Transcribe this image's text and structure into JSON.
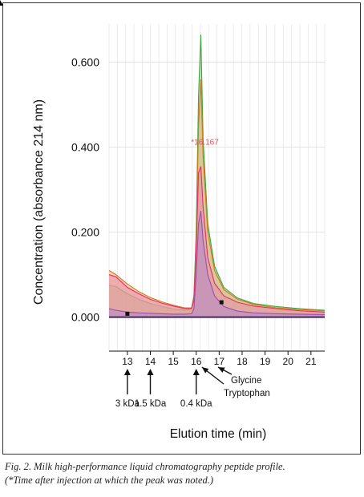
{
  "chart_data": {
    "type": "line",
    "title": "",
    "xlabel": "Elution time (min)",
    "ylabel": "Concentration (absorbance 214 nm)",
    "xlim": [
      12.2,
      21.6
    ],
    "ylim": [
      -0.08,
      0.69
    ],
    "y_ticks": [
      {
        "value": 0.0,
        "label": "0.000"
      },
      {
        "value": 0.2,
        "label": "0.200"
      },
      {
        "value": 0.4,
        "label": "0.400"
      },
      {
        "value": 0.6,
        "label": "0.600"
      }
    ],
    "x_ticks": [
      {
        "value": 13,
        "label": "13"
      },
      {
        "value": 14,
        "label": "14"
      },
      {
        "value": 15,
        "label": "15"
      },
      {
        "value": 16,
        "label": "16"
      },
      {
        "value": 17,
        "label": "17"
      },
      {
        "value": 18,
        "label": "18"
      },
      {
        "value": 19,
        "label": "19"
      },
      {
        "value": 20,
        "label": "20"
      },
      {
        "value": 21,
        "label": "21"
      }
    ],
    "grid": true,
    "peak_annotation": {
      "x": 16.167,
      "y": 0.355,
      "label": "*16.167",
      "color": "#e0506a"
    },
    "series": [
      {
        "color": "#3aa83a",
        "fill": "#8fcf8f",
        "x": [
          12.2,
          12.5,
          13,
          13.5,
          14,
          14.5,
          15,
          15.5,
          15.8,
          15.9,
          16.0,
          16.1,
          16.2,
          16.3,
          16.5,
          16.8,
          17.2,
          17.8,
          18.5,
          19.5,
          20.5,
          21.6
        ],
        "y": [
          0.075,
          0.072,
          0.055,
          0.042,
          0.032,
          0.025,
          0.019,
          0.016,
          0.02,
          0.05,
          0.2,
          0.52,
          0.665,
          0.42,
          0.22,
          0.12,
          0.07,
          0.045,
          0.032,
          0.025,
          0.02,
          0.016
        ]
      },
      {
        "color": "#d47a1a",
        "fill": "#e9b27a",
        "x": [
          12.2,
          12.5,
          13,
          13.5,
          14,
          14.5,
          15,
          15.5,
          15.8,
          15.9,
          16.0,
          16.1,
          16.2,
          16.3,
          16.5,
          16.8,
          17.2,
          17.8,
          18.5,
          19.5,
          20.5,
          21.6
        ],
        "y": [
          0.11,
          0.1,
          0.078,
          0.06,
          0.046,
          0.036,
          0.028,
          0.022,
          0.022,
          0.05,
          0.18,
          0.45,
          0.56,
          0.38,
          0.2,
          0.11,
          0.065,
          0.042,
          0.03,
          0.022,
          0.018,
          0.015
        ]
      },
      {
        "color": "#e2306a",
        "fill": "#e98aa8",
        "x": [
          12.2,
          12.5,
          13,
          13.5,
          14,
          14.5,
          15,
          15.5,
          15.8,
          15.9,
          16.0,
          16.1,
          16.2,
          16.3,
          16.5,
          16.8,
          17.2,
          17.8,
          18.5,
          19.5,
          20.5,
          21.6
        ],
        "y": [
          0.1,
          0.095,
          0.07,
          0.055,
          0.042,
          0.033,
          0.026,
          0.02,
          0.02,
          0.04,
          0.16,
          0.34,
          0.355,
          0.26,
          0.14,
          0.08,
          0.05,
          0.035,
          0.026,
          0.02,
          0.015,
          0.012
        ]
      },
      {
        "color": "#9b4fb0",
        "fill": "#b889cc",
        "x": [
          12.2,
          12.5,
          13,
          13.5,
          14,
          14.5,
          15,
          15.5,
          15.8,
          15.9,
          16.0,
          16.1,
          16.2,
          16.3,
          16.5,
          16.8,
          17.2,
          17.8,
          18.5,
          19.5,
          20.5,
          21.6
        ],
        "y": [
          0.02,
          0.016,
          0.012,
          0.01,
          0.009,
          0.008,
          0.007,
          0.007,
          0.008,
          0.02,
          0.1,
          0.22,
          0.25,
          0.18,
          0.1,
          0.05,
          0.025,
          0.014,
          0.01,
          0.008,
          0.007,
          0.006
        ]
      }
    ],
    "markers": [
      {
        "x": 13.0,
        "y": 0.008
      },
      {
        "x": 17.1,
        "y": 0.035
      }
    ],
    "annotations": [
      {
        "x": 13,
        "label": "3 kDa",
        "row": 1
      },
      {
        "x": 14,
        "label": "1.5 kDa",
        "row": 1
      },
      {
        "x": 16,
        "label": "0.4 kDa",
        "row": 1
      },
      {
        "x": 16.3,
        "label": "Tryptophan",
        "row": 2
      },
      {
        "x": 16.85,
        "label": "Glycine",
        "row": 3
      }
    ]
  },
  "caption": {
    "line1": "Fig. 2. Milk high-performance liquid chromatography peptide profile.",
    "line2": "(*Time after injection at which the peak was noted.)"
  }
}
